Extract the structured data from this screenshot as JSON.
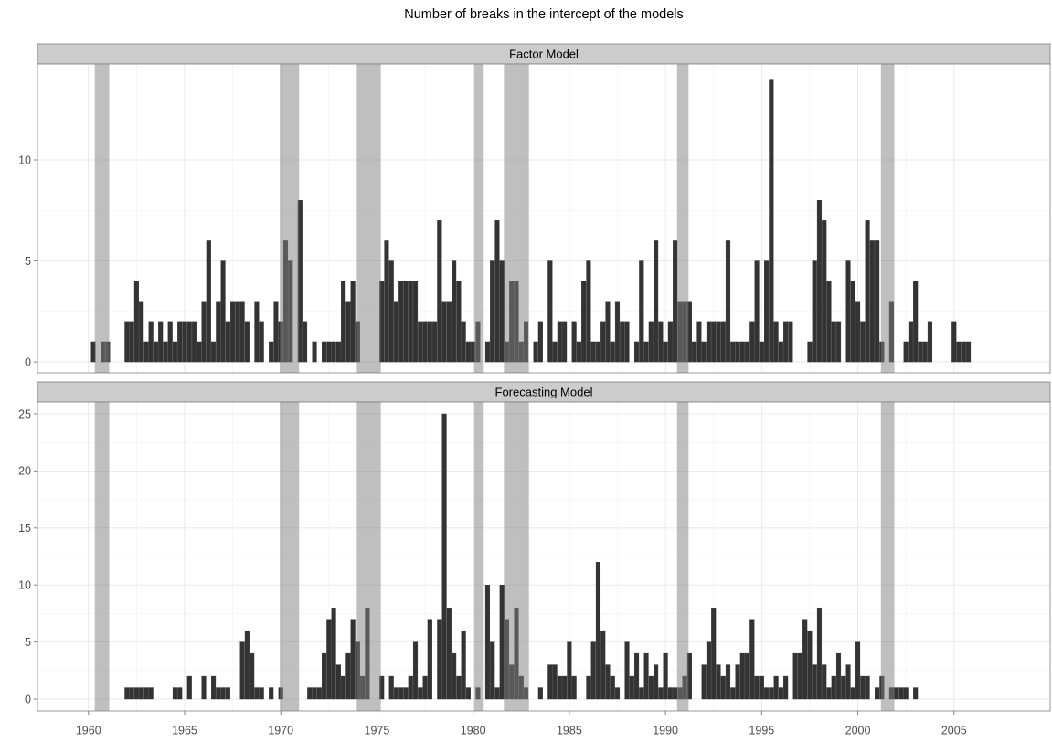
{
  "chart_data": [
    {
      "type": "bar",
      "title": "Number of breaks in the intercept of the models",
      "facet": "Factor Model",
      "x": [
        1960,
        1960.25,
        1960.5,
        1960.75,
        1961,
        1961.25,
        1961.5,
        1961.75,
        1962,
        1962.25,
        1962.5,
        1962.75,
        1963,
        1963.25,
        1963.5,
        1963.75,
        1964,
        1964.25,
        1964.5,
        1964.75,
        1965,
        1965.25,
        1965.5,
        1965.75,
        1966,
        1966.25,
        1966.5,
        1966.75,
        1967,
        1967.25,
        1967.5,
        1967.75,
        1968,
        1968.25,
        1968.5,
        1968.75,
        1969,
        1969.25,
        1969.5,
        1969.75,
        1970,
        1970.25,
        1970.5,
        1970.75,
        1971,
        1971.25,
        1971.5,
        1971.75,
        1972,
        1972.25,
        1972.5,
        1972.75,
        1973,
        1973.25,
        1973.5,
        1973.75,
        1974,
        1974.25,
        1974.5,
        1974.75,
        1975,
        1975.25,
        1975.5,
        1975.75,
        1976,
        1976.25,
        1976.5,
        1976.75,
        1977,
        1977.25,
        1977.5,
        1977.75,
        1978,
        1978.25,
        1978.5,
        1978.75,
        1979,
        1979.25,
        1979.5,
        1979.75,
        1980,
        1980.25,
        1980.5,
        1980.75,
        1981,
        1981.25,
        1981.5,
        1981.75,
        1982,
        1982.25,
        1982.5,
        1982.75,
        1983,
        1983.25,
        1983.5,
        1983.75,
        1984,
        1984.25,
        1984.5,
        1984.75,
        1985,
        1985.25,
        1985.5,
        1985.75,
        1986,
        1986.25,
        1986.5,
        1986.75,
        1987,
        1987.25,
        1987.5,
        1987.75,
        1988,
        1988.25,
        1988.5,
        1988.75,
        1989,
        1989.25,
        1989.5,
        1989.75,
        1990,
        1990.25,
        1990.5,
        1990.75,
        1991,
        1991.25,
        1991.5,
        1991.75,
        1992,
        1992.25,
        1992.5,
        1992.75,
        1993,
        1993.25,
        1993.5,
        1993.75,
        1994,
        1994.25,
        1994.5,
        1994.75,
        1995,
        1995.25,
        1995.5,
        1995.75,
        1996,
        1996.25,
        1996.5,
        1996.75,
        1997,
        1997.25,
        1997.5,
        1997.75,
        1998,
        1998.25,
        1998.5,
        1998.75,
        1999,
        1999.25,
        1999.5,
        1999.75,
        2000,
        2000.25,
        2000.5,
        2000.75,
        2001,
        2001.25,
        2001.5,
        2001.75,
        2002,
        2002.25,
        2002.5,
        2002.75,
        2003,
        2003.25,
        2003.5,
        2003.75,
        2004,
        2004.25,
        2004.5,
        2004.75,
        2005,
        2005.25,
        2005.5,
        2005.75
      ],
      "values": [
        0,
        1,
        0,
        1,
        1,
        0,
        0,
        0,
        2,
        2,
        4,
        3,
        1,
        2,
        1,
        2,
        1,
        2,
        1,
        2,
        2,
        2,
        2,
        1,
        3,
        6,
        1,
        3,
        5,
        2,
        3,
        3,
        3,
        2,
        0,
        3,
        2,
        0,
        1,
        3,
        2,
        6,
        5,
        0,
        8,
        2,
        0,
        1,
        0,
        1,
        1,
        1,
        1,
        4,
        3,
        4,
        2,
        0,
        0,
        0,
        0,
        4,
        6,
        5,
        3,
        4,
        4,
        4,
        4,
        2,
        2,
        2,
        2,
        7,
        3,
        3,
        5,
        4,
        2,
        1,
        1,
        2,
        0,
        1,
        5,
        7,
        5,
        1,
        4,
        4,
        1,
        2,
        0,
        1,
        2,
        0,
        5,
        1,
        2,
        2,
        0,
        2,
        1,
        4,
        5,
        1,
        1,
        2,
        3,
        1,
        3,
        2,
        2,
        0,
        1,
        5,
        1,
        2,
        6,
        2,
        1,
        2,
        6,
        3,
        3,
        3,
        1,
        2,
        1,
        2,
        2,
        2,
        2,
        6,
        1,
        1,
        1,
        1,
        2,
        5,
        1,
        5,
        14,
        2,
        1,
        2,
        2,
        0,
        0,
        0,
        1,
        5,
        8,
        7,
        4,
        2,
        2,
        0,
        5,
        4,
        3,
        2,
        7,
        6,
        6,
        1,
        0,
        3,
        0,
        0,
        1,
        2,
        4,
        1,
        1,
        2,
        0,
        0,
        0,
        0,
        2,
        1,
        1,
        1
      ],
      "color": "#333333",
      "shaded_periods": [
        [
          1960.33,
          1961.08
        ],
        [
          1969.95,
          1970.95
        ],
        [
          1973.95,
          1975.2
        ],
        [
          1980.05,
          1980.55
        ],
        [
          1981.6,
          1982.9
        ],
        [
          1990.6,
          1991.2
        ],
        [
          2001.2,
          2001.9
        ]
      ],
      "xlim": [
        1957.35,
        2010.0
      ],
      "xticks": [
        1960,
        1965,
        1970,
        1975,
        1980,
        1985,
        1990,
        1995,
        2000,
        2005
      ],
      "ylim": [
        -0.54,
        14.75
      ],
      "yticks": [
        0,
        5,
        10
      ],
      "grid": true
    },
    {
      "type": "bar",
      "facet": "Forecasting Model",
      "x": [
        1960,
        1960.25,
        1960.5,
        1960.75,
        1961,
        1961.25,
        1961.5,
        1961.75,
        1962,
        1962.25,
        1962.5,
        1962.75,
        1963,
        1963.25,
        1963.5,
        1963.75,
        1964,
        1964.25,
        1964.5,
        1964.75,
        1965,
        1965.25,
        1965.5,
        1965.75,
        1966,
        1966.25,
        1966.5,
        1966.75,
        1967,
        1967.25,
        1967.5,
        1967.75,
        1968,
        1968.25,
        1968.5,
        1968.75,
        1969,
        1969.25,
        1969.5,
        1969.75,
        1970,
        1970.25,
        1970.5,
        1970.75,
        1971,
        1971.25,
        1971.5,
        1971.75,
        1972,
        1972.25,
        1972.5,
        1972.75,
        1973,
        1973.25,
        1973.5,
        1973.75,
        1974,
        1974.25,
        1974.5,
        1974.75,
        1975,
        1975.25,
        1975.5,
        1975.75,
        1976,
        1976.25,
        1976.5,
        1976.75,
        1977,
        1977.25,
        1977.5,
        1977.75,
        1978,
        1978.25,
        1978.5,
        1978.75,
        1979,
        1979.25,
        1979.5,
        1979.75,
        1980,
        1980.25,
        1980.5,
        1980.75,
        1981,
        1981.25,
        1981.5,
        1981.75,
        1982,
        1982.25,
        1982.5,
        1982.75,
        1983,
        1983.25,
        1983.5,
        1983.75,
        1984,
        1984.25,
        1984.5,
        1984.75,
        1985,
        1985.25,
        1985.5,
        1985.75,
        1986,
        1986.25,
        1986.5,
        1986.75,
        1987,
        1987.25,
        1987.5,
        1987.75,
        1988,
        1988.25,
        1988.5,
        1988.75,
        1989,
        1989.25,
        1989.5,
        1989.75,
        1990,
        1990.25,
        1990.5,
        1990.75,
        1991,
        1991.25,
        1991.5,
        1991.75,
        1992,
        1992.25,
        1992.5,
        1992.75,
        1993,
        1993.25,
        1993.5,
        1993.75,
        1994,
        1994.25,
        1994.5,
        1994.75,
        1995,
        1995.25,
        1995.5,
        1995.75,
        1996,
        1996.25,
        1996.5,
        1996.75,
        1997,
        1997.25,
        1997.5,
        1997.75,
        1998,
        1998.25,
        1998.5,
        1998.75,
        1999,
        1999.25,
        1999.5,
        1999.75,
        2000,
        2000.25,
        2000.5,
        2000.75,
        2001,
        2001.25,
        2001.5,
        2001.75,
        2002,
        2002.25,
        2002.5,
        2002.75,
        2003,
        2003.25,
        2003.5,
        2003.75,
        2004,
        2004.25,
        2004.5,
        2004.75,
        2005,
        2005.25,
        2005.5,
        2005.75
      ],
      "values": [
        0,
        0,
        0,
        0,
        0,
        0,
        0,
        0,
        1,
        1,
        1,
        1,
        1,
        1,
        0,
        0,
        0,
        0,
        1,
        1,
        0,
        2,
        0,
        0,
        2,
        0,
        2,
        1,
        1,
        1,
        0,
        0,
        5,
        6,
        4,
        1,
        1,
        0,
        1,
        0,
        1,
        0,
        0,
        0,
        0,
        0,
        1,
        1,
        1,
        4,
        7,
        8,
        3,
        2,
        4,
        7,
        5,
        2,
        8,
        0,
        0,
        2,
        0,
        2,
        1,
        1,
        1,
        2,
        5,
        1,
        2,
        7,
        0,
        7,
        25,
        8,
        4,
        2,
        6,
        1,
        0,
        1,
        0,
        10,
        5,
        1,
        10,
        7,
        3,
        8,
        2,
        1,
        0,
        0,
        1,
        0,
        3,
        3,
        2,
        2,
        5,
        2,
        0,
        0,
        2,
        5,
        12,
        6,
        3,
        2,
        1,
        0,
        5,
        2,
        4,
        1,
        4,
        2,
        3,
        1,
        4,
        1,
        1,
        1,
        2,
        4,
        0,
        0,
        3,
        5,
        8,
        3,
        2,
        3,
        1,
        3,
        4,
        4,
        7,
        2,
        2,
        1,
        1,
        2,
        1,
        2,
        0,
        4,
        4,
        7,
        6,
        3,
        8,
        3,
        1,
        2,
        4,
        2,
        3,
        1,
        5,
        2,
        2,
        0,
        1,
        2,
        0,
        1,
        1,
        1,
        1,
        0,
        1,
        0,
        0,
        0,
        0,
        0,
        0,
        0,
        0,
        0,
        0,
        0
      ],
      "color": "#333333",
      "shaded_periods": [
        [
          1960.33,
          1961.08
        ],
        [
          1969.95,
          1970.95
        ],
        [
          1973.95,
          1975.2
        ],
        [
          1980.05,
          1980.55
        ],
        [
          1981.6,
          1982.9
        ],
        [
          1990.6,
          1991.2
        ],
        [
          2001.2,
          2001.9
        ]
      ],
      "xlim": [
        1957.35,
        2010.0
      ],
      "xticks": [
        1960,
        1965,
        1970,
        1975,
        1980,
        1985,
        1990,
        1995,
        2000,
        2005
      ],
      "ylim": [
        -1.04,
        26.04
      ],
      "yticks": [
        0,
        5,
        10,
        15,
        20,
        25
      ],
      "grid": true
    }
  ]
}
